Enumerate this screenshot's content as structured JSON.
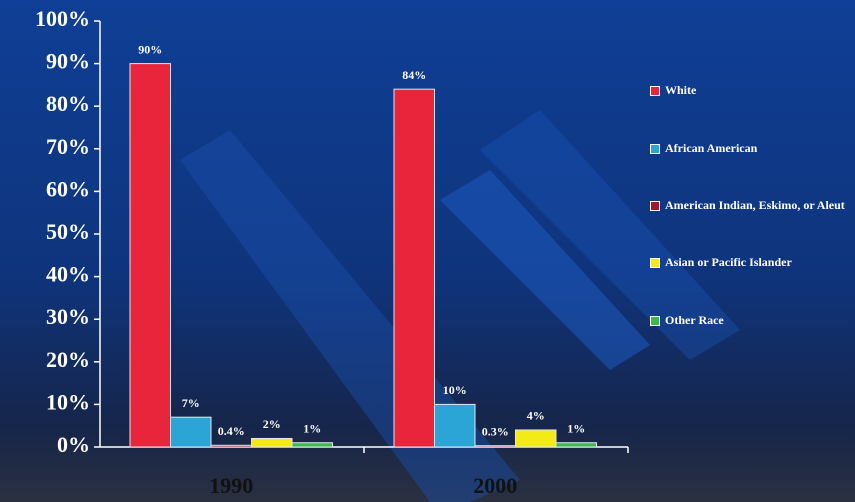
{
  "chart_data": {
    "type": "bar",
    "categories": [
      "1990",
      "2000"
    ],
    "series": [
      {
        "name": "White",
        "color": "#e8253a",
        "values": [
          90,
          84
        ],
        "value_labels": [
          "90%",
          "84%"
        ]
      },
      {
        "name": "African American",
        "color": "#2ba4d6",
        "values": [
          7,
          10
        ],
        "value_labels": [
          "7%",
          "10%"
        ]
      },
      {
        "name": "American Indian, Eskimo, or Aleut",
        "color": "#a3162c",
        "values": [
          0.4,
          0.3
        ],
        "value_labels": [
          "0.4%",
          "0.3%"
        ]
      },
      {
        "name": "Asian or Pacific Islander",
        "color": "#f3ea18",
        "values": [
          2,
          4
        ],
        "value_labels": [
          "2%",
          "4%"
        ]
      },
      {
        "name": "Other Race",
        "color": "#3db84b",
        "values": [
          1,
          1
        ],
        "value_labels": [
          "1%",
          "1%"
        ]
      }
    ],
    "ylim": [
      0,
      100
    ],
    "yticks": [
      {
        "value": 0,
        "label": "0%"
      },
      {
        "value": 10,
        "label": "10%"
      },
      {
        "value": 20,
        "label": "20%"
      },
      {
        "value": 30,
        "label": "30%"
      },
      {
        "value": 40,
        "label": "40%"
      },
      {
        "value": 50,
        "label": "50%"
      },
      {
        "value": 60,
        "label": "60%"
      },
      {
        "value": 70,
        "label": "70%"
      },
      {
        "value": 80,
        "label": "80%"
      },
      {
        "value": 90,
        "label": "90%"
      },
      {
        "value": 100,
        "label": "100%"
      }
    ],
    "legend": "right"
  }
}
